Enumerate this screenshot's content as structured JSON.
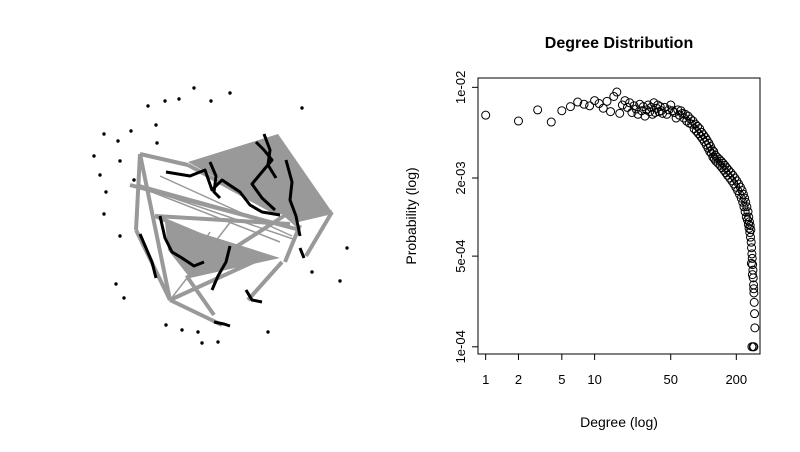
{
  "network_plot": {
    "edge_color": "#999999",
    "node_color": "#000000"
  },
  "chart_data": {
    "type": "scatter",
    "title": "Degree Distribution",
    "xlabel": "Degree (log)",
    "ylabel": "Probability (log)",
    "x_scale": "log",
    "y_scale": "log",
    "xlim": [
      0.85,
      330
    ],
    "ylim": [
      8.8e-05,
      0.0118
    ],
    "x_ticks": [
      1,
      2,
      5,
      10,
      50,
      200
    ],
    "x_tick_labels": [
      "1",
      "2",
      "5",
      "10",
      "50",
      "200"
    ],
    "y_ticks": [
      0.0001,
      0.0005,
      0.002,
      0.01
    ],
    "y_tick_labels": [
      "1e-04",
      "5e-04",
      "2e-03",
      "1e-02"
    ],
    "marker": "open-circle",
    "points": [
      [
        1,
        0.0061
      ],
      [
        2,
        0.0055
      ],
      [
        3,
        0.0067
      ],
      [
        4,
        0.0054
      ],
      [
        5,
        0.0066
      ],
      [
        6,
        0.0071
      ],
      [
        7,
        0.0077
      ],
      [
        8,
        0.0074
      ],
      [
        9,
        0.0072
      ],
      [
        10,
        0.0079
      ],
      [
        11,
        0.0075
      ],
      [
        12,
        0.0069
      ],
      [
        13,
        0.0078
      ],
      [
        14,
        0.0065
      ],
      [
        15,
        0.0085
      ],
      [
        16,
        0.0092
      ],
      [
        17,
        0.0063
      ],
      [
        18,
        0.0073
      ],
      [
        19,
        0.0079
      ],
      [
        20,
        0.007
      ],
      [
        21,
        0.0076
      ],
      [
        22,
        0.0064
      ],
      [
        23,
        0.0072
      ],
      [
        24,
        0.0068
      ],
      [
        25,
        0.0062
      ],
      [
        26,
        0.0074
      ],
      [
        27,
        0.0066
      ],
      [
        28,
        0.0071
      ],
      [
        29,
        0.006
      ],
      [
        30,
        0.0067
      ],
      [
        31,
        0.0073
      ],
      [
        32,
        0.0065
      ],
      [
        33,
        0.007
      ],
      [
        34,
        0.0062
      ],
      [
        35,
        0.0076
      ],
      [
        36,
        0.0064
      ],
      [
        37,
        0.0069
      ],
      [
        38,
        0.0073
      ],
      [
        39,
        0.0065
      ],
      [
        40,
        0.0071
      ],
      [
        41,
        0.0066
      ],
      [
        42,
        0.0063
      ],
      [
        44,
        0.007
      ],
      [
        46,
        0.0062
      ],
      [
        48,
        0.0067
      ],
      [
        50,
        0.0073
      ],
      [
        52,
        0.0066
      ],
      [
        54,
        0.0064
      ],
      [
        56,
        0.0058
      ],
      [
        58,
        0.0067
      ],
      [
        60,
        0.0061
      ],
      [
        62,
        0.0066
      ],
      [
        64,
        0.0063
      ],
      [
        66,
        0.0058
      ],
      [
        68,
        0.0062
      ],
      [
        70,
        0.0055
      ],
      [
        72,
        0.006
      ],
      [
        74,
        0.0053
      ],
      [
        76,
        0.0057
      ],
      [
        78,
        0.0052
      ],
      [
        80,
        0.0055
      ],
      [
        82,
        0.0048
      ],
      [
        84,
        0.0052
      ],
      [
        86,
        0.0046
      ],
      [
        88,
        0.005
      ],
      [
        90,
        0.0044
      ],
      [
        92,
        0.0048
      ],
      [
        94,
        0.0042
      ],
      [
        96,
        0.0045
      ],
      [
        98,
        0.004
      ],
      [
        100,
        0.0043
      ],
      [
        102,
        0.0038
      ],
      [
        104,
        0.0041
      ],
      [
        106,
        0.0036
      ],
      [
        108,
        0.0039
      ],
      [
        110,
        0.0034
      ],
      [
        112,
        0.0037
      ],
      [
        114,
        0.0032
      ],
      [
        116,
        0.0035
      ],
      [
        118,
        0.0031
      ],
      [
        120,
        0.0033
      ],
      [
        122,
        0.0029
      ],
      [
        124,
        0.0032
      ],
      [
        126,
        0.0028
      ],
      [
        128,
        0.003
      ],
      [
        130,
        0.0027
      ],
      [
        133,
        0.0029
      ],
      [
        136,
        0.0026
      ],
      [
        139,
        0.0028
      ],
      [
        142,
        0.0025
      ],
      [
        145,
        0.0027
      ],
      [
        148,
        0.0024
      ],
      [
        151,
        0.0026
      ],
      [
        154,
        0.0023
      ],
      [
        157,
        0.0025
      ],
      [
        160,
        0.0022
      ],
      [
        163,
        0.0024
      ],
      [
        166,
        0.0021
      ],
      [
        170,
        0.0023
      ],
      [
        174,
        0.002
      ],
      [
        178,
        0.0022
      ],
      [
        182,
        0.0019
      ],
      [
        186,
        0.0021
      ],
      [
        190,
        0.0018
      ],
      [
        194,
        0.002
      ],
      [
        198,
        0.0017
      ],
      [
        202,
        0.0019
      ],
      [
        206,
        0.0016
      ],
      [
        210,
        0.0018
      ],
      [
        214,
        0.0015
      ],
      [
        218,
        0.0017
      ],
      [
        222,
        0.0014
      ],
      [
        226,
        0.0016
      ],
      [
        229,
        0.0013
      ],
      [
        232,
        0.0015
      ],
      [
        235,
        0.0012
      ],
      [
        238,
        0.0014
      ],
      [
        241,
        0.0011
      ],
      [
        244,
        0.0013
      ],
      [
        247,
        0.001
      ],
      [
        250,
        0.0012
      ],
      [
        253,
        0.00095
      ],
      [
        256,
        0.0011
      ],
      [
        258,
        0.00088
      ],
      [
        260,
        0.001
      ],
      [
        262,
        0.00082
      ],
      [
        264,
        0.00092
      ],
      [
        266,
        0.00076
      ],
      [
        268,
        0.00086
      ],
      [
        270,
        0.0007
      ],
      [
        272,
        0.0008
      ],
      [
        274,
        0.00064
      ],
      [
        276,
        0.00058
      ],
      [
        278,
        0.00052
      ],
      [
        280,
        0.00048
      ],
      [
        282,
        0.00043
      ],
      [
        284,
        0.00039
      ],
      [
        286,
        0.00034
      ],
      [
        288,
        0.0003
      ],
      [
        290,
        0.00026
      ],
      [
        292,
        0.00022
      ],
      [
        294,
        0.00018
      ],
      [
        296,
        0.00014
      ],
      [
        275,
        0.00044
      ],
      [
        281,
        0.00036
      ],
      [
        289,
        0.00028
      ],
      [
        278,
        0.0001
      ],
      [
        286,
        0.0001
      ],
      [
        290,
        0.0001
      ]
    ]
  }
}
